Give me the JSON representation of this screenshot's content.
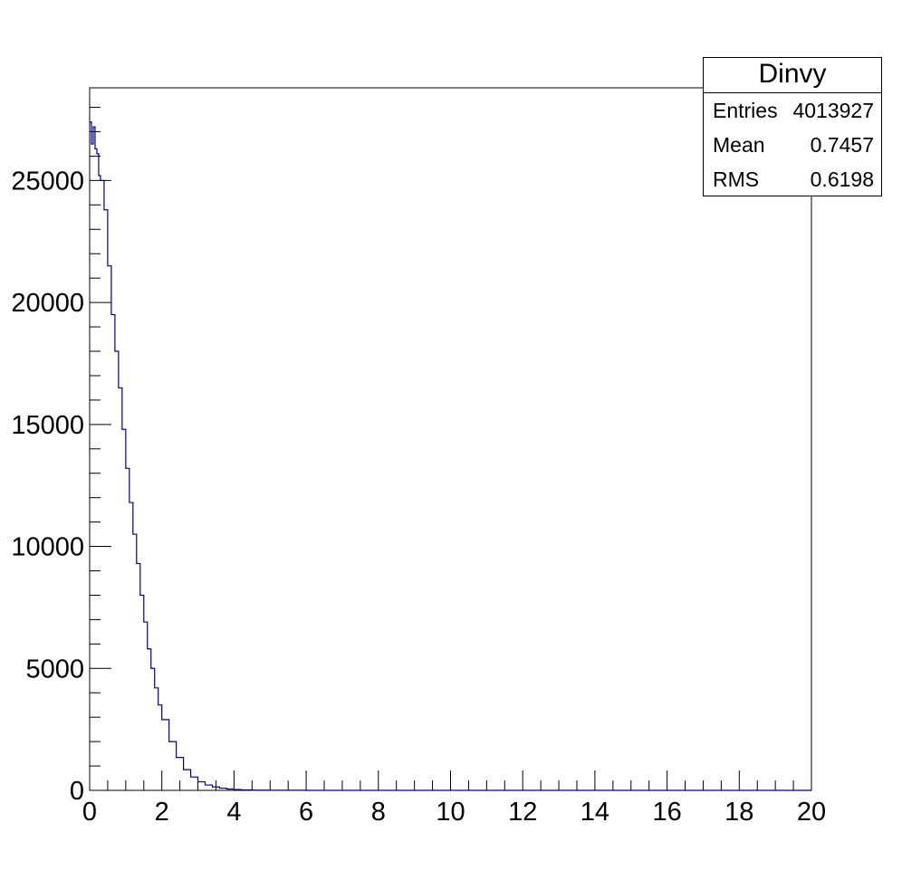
{
  "stats": {
    "title": "Dinvy",
    "entries_label": "Entries",
    "entries_value": "4013927",
    "mean_label": "Mean",
    "mean_value": "0.7457",
    "rms_label": "RMS",
    "rms_value": "0.6198"
  },
  "colors": {
    "line": "#000080",
    "frame": "#000000",
    "background": "#ffffff"
  },
  "chart_data": {
    "type": "line",
    "title": "",
    "xlabel": "",
    "ylabel": "",
    "xlim": [
      0,
      20
    ],
    "ylim": [
      0,
      28800
    ],
    "x_ticks": [
      0,
      2,
      4,
      6,
      8,
      10,
      12,
      14,
      16,
      18,
      20
    ],
    "y_ticks": [
      0,
      5000,
      10000,
      15000,
      20000,
      25000
    ],
    "grid": false,
    "legend": "none",
    "series": [
      {
        "x": [
          0,
          0.05,
          0.1,
          0.15,
          0.2,
          0.25,
          0.3,
          0.4,
          0.5,
          0.6,
          0.7,
          0.8,
          0.9,
          1.0,
          1.1,
          1.2,
          1.3,
          1.4,
          1.5,
          1.6,
          1.7,
          1.8,
          1.9,
          2.0,
          2.2,
          2.4,
          2.6,
          2.8,
          3.0,
          3.2,
          3.4,
          3.6,
          3.8,
          4.0,
          4.2,
          4.5,
          5.0,
          6.0,
          8.0,
          10.0,
          20.0
        ],
        "y": [
          27400,
          26500,
          27200,
          26300,
          26100,
          25200,
          25000,
          23800,
          21500,
          19500,
          18000,
          16500,
          14800,
          13200,
          11800,
          10500,
          9300,
          8000,
          6900,
          5800,
          5000,
          4200,
          3500,
          2900,
          2000,
          1350,
          850,
          550,
          350,
          220,
          140,
          90,
          55,
          35,
          20,
          10,
          5,
          0,
          0,
          0,
          0
        ]
      }
    ]
  }
}
